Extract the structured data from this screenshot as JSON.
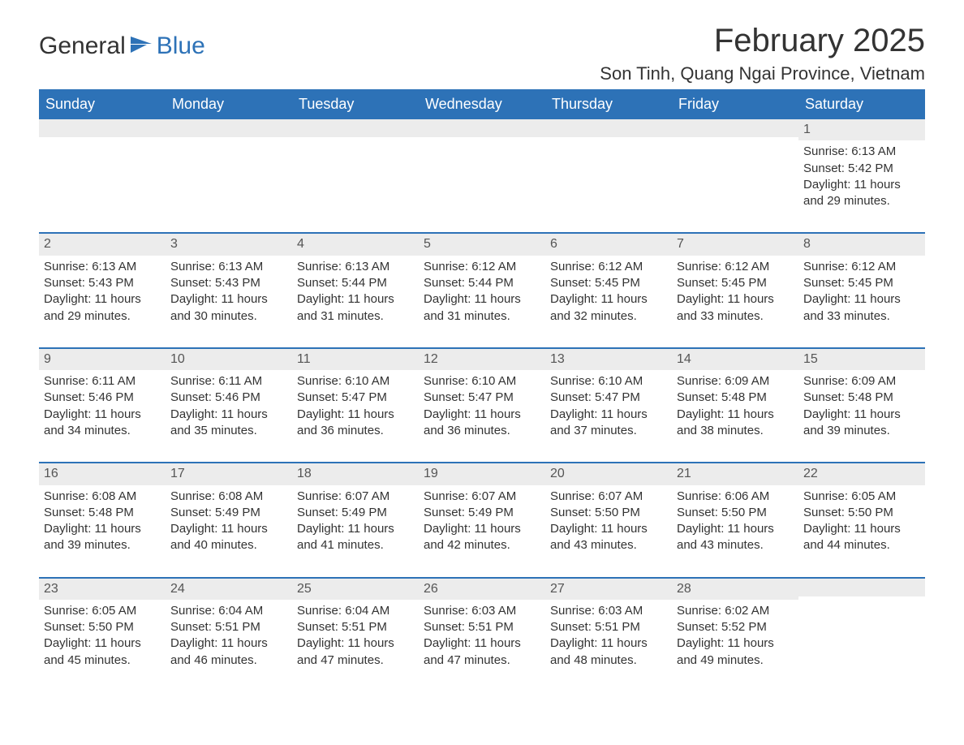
{
  "logo": {
    "text1": "General",
    "text2": "Blue"
  },
  "title": "February 2025",
  "location": "Son Tinh, Quang Ngai Province, Vietnam",
  "colors": {
    "header_bg": "#2d72b7",
    "header_text": "#ffffff",
    "row_divider": "#2d72b7",
    "daynum_bg": "#ececec",
    "daynum_text": "#555555",
    "body_text": "#333333",
    "page_bg": "#ffffff"
  },
  "typography": {
    "title_fontsize_pt": 30,
    "location_fontsize_pt": 16,
    "dayheader_fontsize_pt": 14,
    "daynum_fontsize_pt": 12,
    "detail_fontsize_pt": 11,
    "logo_fontsize_pt": 22
  },
  "day_names": [
    "Sunday",
    "Monday",
    "Tuesday",
    "Wednesday",
    "Thursday",
    "Friday",
    "Saturday"
  ],
  "label": {
    "sunrise": "Sunrise",
    "sunset": "Sunset",
    "daylight": "Daylight"
  },
  "weeks": [
    [
      null,
      null,
      null,
      null,
      null,
      null,
      {
        "day": "1",
        "sunrise": "6:13 AM",
        "sunset": "5:42 PM",
        "daylight": "11 hours and 29 minutes."
      }
    ],
    [
      {
        "day": "2",
        "sunrise": "6:13 AM",
        "sunset": "5:43 PM",
        "daylight": "11 hours and 29 minutes."
      },
      {
        "day": "3",
        "sunrise": "6:13 AM",
        "sunset": "5:43 PM",
        "daylight": "11 hours and 30 minutes."
      },
      {
        "day": "4",
        "sunrise": "6:13 AM",
        "sunset": "5:44 PM",
        "daylight": "11 hours and 31 minutes."
      },
      {
        "day": "5",
        "sunrise": "6:12 AM",
        "sunset": "5:44 PM",
        "daylight": "11 hours and 31 minutes."
      },
      {
        "day": "6",
        "sunrise": "6:12 AM",
        "sunset": "5:45 PM",
        "daylight": "11 hours and 32 minutes."
      },
      {
        "day": "7",
        "sunrise": "6:12 AM",
        "sunset": "5:45 PM",
        "daylight": "11 hours and 33 minutes."
      },
      {
        "day": "8",
        "sunrise": "6:12 AM",
        "sunset": "5:45 PM",
        "daylight": "11 hours and 33 minutes."
      }
    ],
    [
      {
        "day": "9",
        "sunrise": "6:11 AM",
        "sunset": "5:46 PM",
        "daylight": "11 hours and 34 minutes."
      },
      {
        "day": "10",
        "sunrise": "6:11 AM",
        "sunset": "5:46 PM",
        "daylight": "11 hours and 35 minutes."
      },
      {
        "day": "11",
        "sunrise": "6:10 AM",
        "sunset": "5:47 PM",
        "daylight": "11 hours and 36 minutes."
      },
      {
        "day": "12",
        "sunrise": "6:10 AM",
        "sunset": "5:47 PM",
        "daylight": "11 hours and 36 minutes."
      },
      {
        "day": "13",
        "sunrise": "6:10 AM",
        "sunset": "5:47 PM",
        "daylight": "11 hours and 37 minutes."
      },
      {
        "day": "14",
        "sunrise": "6:09 AM",
        "sunset": "5:48 PM",
        "daylight": "11 hours and 38 minutes."
      },
      {
        "day": "15",
        "sunrise": "6:09 AM",
        "sunset": "5:48 PM",
        "daylight": "11 hours and 39 minutes."
      }
    ],
    [
      {
        "day": "16",
        "sunrise": "6:08 AM",
        "sunset": "5:48 PM",
        "daylight": "11 hours and 39 minutes."
      },
      {
        "day": "17",
        "sunrise": "6:08 AM",
        "sunset": "5:49 PM",
        "daylight": "11 hours and 40 minutes."
      },
      {
        "day": "18",
        "sunrise": "6:07 AM",
        "sunset": "5:49 PM",
        "daylight": "11 hours and 41 minutes."
      },
      {
        "day": "19",
        "sunrise": "6:07 AM",
        "sunset": "5:49 PM",
        "daylight": "11 hours and 42 minutes."
      },
      {
        "day": "20",
        "sunrise": "6:07 AM",
        "sunset": "5:50 PM",
        "daylight": "11 hours and 43 minutes."
      },
      {
        "day": "21",
        "sunrise": "6:06 AM",
        "sunset": "5:50 PM",
        "daylight": "11 hours and 43 minutes."
      },
      {
        "day": "22",
        "sunrise": "6:05 AM",
        "sunset": "5:50 PM",
        "daylight": "11 hours and 44 minutes."
      }
    ],
    [
      {
        "day": "23",
        "sunrise": "6:05 AM",
        "sunset": "5:50 PM",
        "daylight": "11 hours and 45 minutes."
      },
      {
        "day": "24",
        "sunrise": "6:04 AM",
        "sunset": "5:51 PM",
        "daylight": "11 hours and 46 minutes."
      },
      {
        "day": "25",
        "sunrise": "6:04 AM",
        "sunset": "5:51 PM",
        "daylight": "11 hours and 47 minutes."
      },
      {
        "day": "26",
        "sunrise": "6:03 AM",
        "sunset": "5:51 PM",
        "daylight": "11 hours and 47 minutes."
      },
      {
        "day": "27",
        "sunrise": "6:03 AM",
        "sunset": "5:51 PM",
        "daylight": "11 hours and 48 minutes."
      },
      {
        "day": "28",
        "sunrise": "6:02 AM",
        "sunset": "5:52 PM",
        "daylight": "11 hours and 49 minutes."
      },
      null
    ]
  ]
}
